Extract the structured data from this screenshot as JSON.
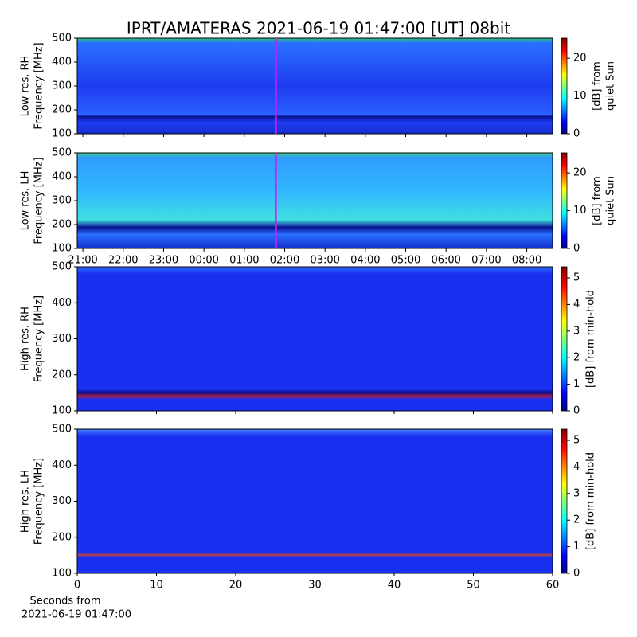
{
  "chart_data": [
    {
      "type": "heatmap",
      "title": "IPRT/AMATERAS 2021-06-19 01:47:00 [UT]   08bit",
      "ylabel": [
        "Low res. RH",
        "Frequency [MHz]"
      ],
      "ylim": [
        100,
        500
      ],
      "yticks": [
        100,
        200,
        300,
        400,
        500
      ],
      "xlim": [
        -0.14,
        11.64
      ],
      "marker": 4.78,
      "marker_color": "#ff00ff",
      "colorbar": {
        "label": [
          "[dB] from",
          "quiet Sun"
        ],
        "lim": [
          0,
          25.3
        ],
        "ticks": [
          0,
          10,
          20
        ]
      }
    },
    {
      "type": "heatmap",
      "ylabel": [
        "Low res. LH",
        "Frequency [MHz]"
      ],
      "ylim": [
        100,
        500
      ],
      "yticks": [
        100,
        200,
        300,
        400,
        500
      ],
      "xlim": [
        -0.14,
        11.64
      ],
      "marker": 4.78,
      "marker_color": "#ff00ff",
      "xticks": [
        {
          "value": 0,
          "label": "21:00"
        },
        {
          "value": 1,
          "label": "22:00"
        },
        {
          "value": 2,
          "label": "23:00"
        },
        {
          "value": 3,
          "label": "00:00"
        },
        {
          "value": 4,
          "label": "01:00"
        },
        {
          "value": 5,
          "label": "02:00"
        },
        {
          "value": 6,
          "label": "03:00"
        },
        {
          "value": 7,
          "label": "04:00"
        },
        {
          "value": 8,
          "label": "05:00"
        },
        {
          "value": 9,
          "label": "06:00"
        },
        {
          "value": 10,
          "label": "07:00"
        },
        {
          "value": 11,
          "label": "08:00"
        }
      ],
      "colorbar": {
        "label": [
          "[dB] from",
          "quiet Sun"
        ],
        "lim": [
          0,
          25.3
        ],
        "ticks": [
          0,
          10,
          20
        ]
      }
    },
    {
      "type": "heatmap",
      "ylabel": [
        "High res. RH",
        "Frequency [MHz]"
      ],
      "ylim": [
        100,
        500
      ],
      "yticks": [
        100,
        200,
        300,
        400,
        500
      ],
      "xlim": [
        0,
        60
      ],
      "colorbar": {
        "label": [
          "[dB] from min-hold"
        ],
        "lim": [
          0,
          5.42
        ],
        "ticks": [
          0,
          1,
          2,
          3,
          4,
          5
        ]
      }
    },
    {
      "type": "heatmap",
      "ylabel": [
        "High res. LH",
        "Frequency [MHz]"
      ],
      "ylim": [
        100,
        500
      ],
      "yticks": [
        100,
        200,
        300,
        400,
        500
      ],
      "xlim": [
        0,
        60
      ],
      "xticks": [
        0,
        10,
        20,
        30,
        40,
        50,
        60
      ],
      "xlabel": [
        "Seconds from",
        "2021-06-19 01:47:00"
      ],
      "colorbar": {
        "label": [
          "[dB] from min-hold"
        ],
        "lim": [
          0,
          5.42
        ],
        "ticks": [
          0,
          1,
          2,
          3,
          4,
          5
        ]
      }
    }
  ]
}
